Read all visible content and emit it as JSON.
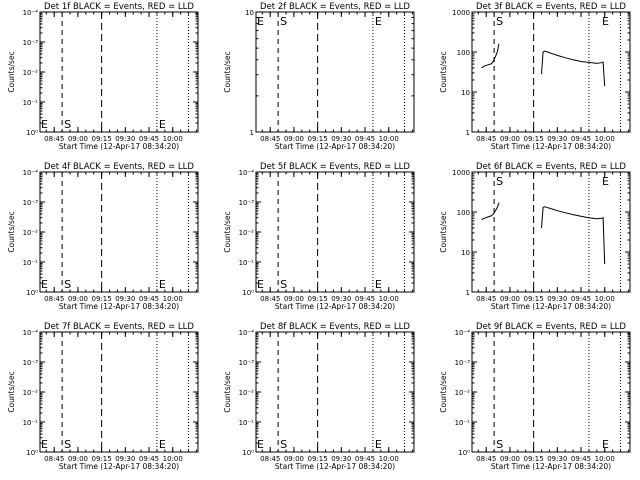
{
  "chart_data": [
    {
      "type": "line",
      "title": "Det 1f BLACK = Events, RED = LLD",
      "ylabel": "Counts/sec",
      "xlabel": "Start Time (12-Apr-17 08:34:20)",
      "yscale": "log",
      "ylim": [
        1,
        0.0001
      ],
      "ytick_labels": [
        "10⁰",
        "10⁻¹",
        "10⁻²",
        "10⁻³",
        "10⁻⁴"
      ],
      "xlim": [
        "08:36",
        "10:16"
      ],
      "xtick_labels": [
        "08:45",
        "09:00",
        "09:15",
        "09:30",
        "09:45",
        "10:00"
      ],
      "event_markers": [
        {
          "label": "E",
          "time": "08:36"
        },
        {
          "label": "S",
          "time": "08:50"
        },
        {
          "label": "E",
          "time": "09:50"
        }
      ],
      "series": []
    },
    {
      "type": "line",
      "title": "Det 2f BLACK = Events, RED = LLD",
      "ylabel": "Counts/sec",
      "xlabel": "Start Time (12-Apr-17 08:34:20)",
      "yscale": "log",
      "ylim": [
        1,
        10
      ],
      "ytick_labels": [
        "1",
        "10"
      ],
      "xlim": [
        "08:36",
        "10:16"
      ],
      "xtick_labels": [
        "08:45",
        "09:00",
        "09:15",
        "09:30",
        "09:45",
        "10:00"
      ],
      "event_markers": [
        {
          "label": "E",
          "time": "08:36"
        },
        {
          "label": "S",
          "time": "08:50"
        },
        {
          "label": "E",
          "time": "09:50"
        }
      ],
      "series": []
    },
    {
      "type": "line",
      "title": "Det 3f BLACK = Events, RED = LLD",
      "ylabel": "Counts/sec",
      "xlabel": "Start Time (12-Apr-17 08:34:20)",
      "yscale": "log",
      "ylim": [
        1,
        1000
      ],
      "ytick_labels": [
        "1",
        "10",
        "100",
        "1000"
      ],
      "xlim": [
        "08:36",
        "10:16"
      ],
      "xtick_labels": [
        "08:45",
        "09:00",
        "09:15",
        "09:30",
        "09:45",
        "10:00"
      ],
      "event_markers": [
        {
          "label": "S",
          "time": "08:50"
        },
        {
          "label": "E",
          "time": "09:57"
        }
      ],
      "series": [
        {
          "x": [
            "08:42",
            "08:44",
            "08:46",
            "08:48",
            "08:49",
            "08:50",
            "08:51",
            "08:52",
            "08:53"
          ],
          "y": [
            40,
            45,
            48,
            50,
            55,
            65,
            80,
            100,
            160
          ]
        },
        {
          "x": [
            "09:20",
            "09:21",
            "09:22",
            "09:24",
            "09:27",
            "09:30",
            "09:35",
            "09:40",
            "09:45",
            "09:50",
            "09:55",
            "09:58",
            "09:59",
            "10:00"
          ],
          "y": [
            28,
            100,
            105,
            100,
            90,
            82,
            72,
            64,
            58,
            55,
            52,
            54,
            56,
            14
          ]
        }
      ]
    },
    {
      "type": "line",
      "title": "Det 4f BLACK = Events, RED = LLD",
      "ylabel": "Counts/sec",
      "xlabel": "Start Time (12-Apr-17 08:34:20)",
      "yscale": "log",
      "ylim": [
        1,
        0.0001
      ],
      "ytick_labels": [
        "10⁰",
        "10⁻¹",
        "10⁻²",
        "10⁻³",
        "10⁻⁴"
      ],
      "xlim": [
        "08:36",
        "10:16"
      ],
      "xtick_labels": [
        "08:45",
        "09:00",
        "09:15",
        "09:30",
        "09:45",
        "10:00"
      ],
      "event_markers": [
        {
          "label": "E",
          "time": "08:36"
        },
        {
          "label": "S",
          "time": "08:50"
        },
        {
          "label": "E",
          "time": "09:50"
        }
      ],
      "series": []
    },
    {
      "type": "line",
      "title": "Det 5f BLACK = Events, RED = LLD",
      "ylabel": "Counts/sec",
      "xlabel": "Start Time (12-Apr-17 08:34:20)",
      "yscale": "log",
      "ylim": [
        1,
        0.0001
      ],
      "ytick_labels": [
        "10⁰",
        "10⁻¹",
        "10⁻²",
        "10⁻³",
        "10⁻⁴"
      ],
      "xlim": [
        "08:36",
        "10:16"
      ],
      "xtick_labels": [
        "08:45",
        "09:00",
        "09:15",
        "09:30",
        "09:45",
        "10:00"
      ],
      "event_markers": [
        {
          "label": "E",
          "time": "08:36"
        },
        {
          "label": "S",
          "time": "08:50"
        },
        {
          "label": "E",
          "time": "09:50"
        }
      ],
      "series": []
    },
    {
      "type": "line",
      "title": "Det 6f BLACK = Events, RED = LLD",
      "ylabel": "Counts/sec",
      "xlabel": "Start Time (12-Apr-17 08:34:20)",
      "yscale": "log",
      "ylim": [
        1,
        1000
      ],
      "ytick_labels": [
        "1",
        "10",
        "100",
        "1000"
      ],
      "xlim": [
        "08:36",
        "10:16"
      ],
      "xtick_labels": [
        "08:45",
        "09:00",
        "09:15",
        "09:30",
        "09:45",
        "10:00"
      ],
      "event_markers": [
        {
          "label": "S",
          "time": "08:50"
        },
        {
          "label": "E",
          "time": "09:57"
        }
      ],
      "series": [
        {
          "x": [
            "08:42",
            "08:44",
            "08:46",
            "08:48",
            "08:49",
            "08:50",
            "08:51",
            "08:52",
            "08:53"
          ],
          "y": [
            65,
            70,
            75,
            80,
            85,
            95,
            110,
            130,
            170
          ]
        },
        {
          "x": [
            "09:20",
            "09:21",
            "09:22",
            "09:24",
            "09:27",
            "09:30",
            "09:35",
            "09:40",
            "09:45",
            "09:50",
            "09:55",
            "09:58",
            "09:59",
            "10:00"
          ],
          "y": [
            40,
            130,
            135,
            128,
            118,
            108,
            96,
            86,
            78,
            72,
            68,
            70,
            72,
            5
          ]
        }
      ]
    },
    {
      "type": "line",
      "title": "Det 7f BLACK = Events, RED = LLD",
      "ylabel": "Counts/sec",
      "xlabel": "Start Time (12-Apr-17 08:34:20)",
      "yscale": "log",
      "ylim": [
        1,
        0.0001
      ],
      "ytick_labels": [
        "10⁰",
        "10⁻¹",
        "10⁻²",
        "10⁻³",
        "10⁻⁴"
      ],
      "xlim": [
        "08:36",
        "10:16"
      ],
      "xtick_labels": [
        "08:45",
        "09:00",
        "09:15",
        "09:30",
        "09:45",
        "10:00"
      ],
      "event_markers": [
        {
          "label": "E",
          "time": "08:36"
        },
        {
          "label": "S",
          "time": "08:50"
        },
        {
          "label": "E",
          "time": "09:50"
        }
      ],
      "series": []
    },
    {
      "type": "line",
      "title": "Det 8f BLACK = Events, RED = LLD",
      "ylabel": "Counts/sec",
      "xlabel": "Start Time (12-Apr-17 08:34:20)",
      "yscale": "log",
      "ylim": [
        1,
        0.0001
      ],
      "ytick_labels": [
        "10⁰",
        "10⁻¹",
        "10⁻²",
        "10⁻³",
        "10⁻⁴"
      ],
      "xlim": [
        "08:36",
        "10:16"
      ],
      "xtick_labels": [
        "08:45",
        "09:00",
        "09:15",
        "09:30",
        "09:45",
        "10:00"
      ],
      "event_markers": [
        {
          "label": "E",
          "time": "08:36"
        },
        {
          "label": "S",
          "time": "08:50"
        },
        {
          "label": "E",
          "time": "09:50"
        }
      ],
      "series": []
    },
    {
      "type": "line",
      "title": "Det 9f BLACK = Events, RED = LLD",
      "ylabel": "Counts/sec",
      "xlabel": "Start Time (12-Apr-17 08:34:20)",
      "yscale": "log",
      "ylim": [
        1,
        0.0001
      ],
      "ytick_labels": [
        "10⁰",
        "10⁻¹",
        "10⁻²",
        "10⁻³",
        "10⁻⁴"
      ],
      "xlim": [
        "08:36",
        "10:16"
      ],
      "xtick_labels": [
        "08:45",
        "09:00",
        "09:15",
        "09:30",
        "09:45",
        "10:00"
      ],
      "event_markers": [
        {
          "label": "S",
          "time": "08:50"
        },
        {
          "label": "E",
          "time": "09:57"
        }
      ],
      "series": []
    }
  ]
}
